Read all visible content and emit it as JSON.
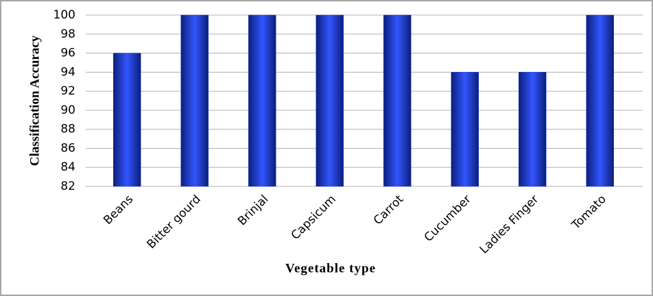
{
  "chart_data": {
    "type": "bar",
    "categories": [
      "Beans",
      "Bitter gourd",
      "Brinjal",
      "Capsicum",
      "Carrot",
      "Cucumber",
      "Ladies Finger",
      "Tomato"
    ],
    "values": [
      96,
      100,
      100,
      100,
      100,
      94,
      94,
      100
    ],
    "color": "#1f3fd6",
    "x_label": "Vegetable type",
    "y_label": "Classification Accuracy",
    "ylim": [
      82,
      100
    ],
    "yticks": [
      82,
      84,
      86,
      88,
      90,
      92,
      94,
      96,
      98,
      100
    ],
    "grid": true
  }
}
